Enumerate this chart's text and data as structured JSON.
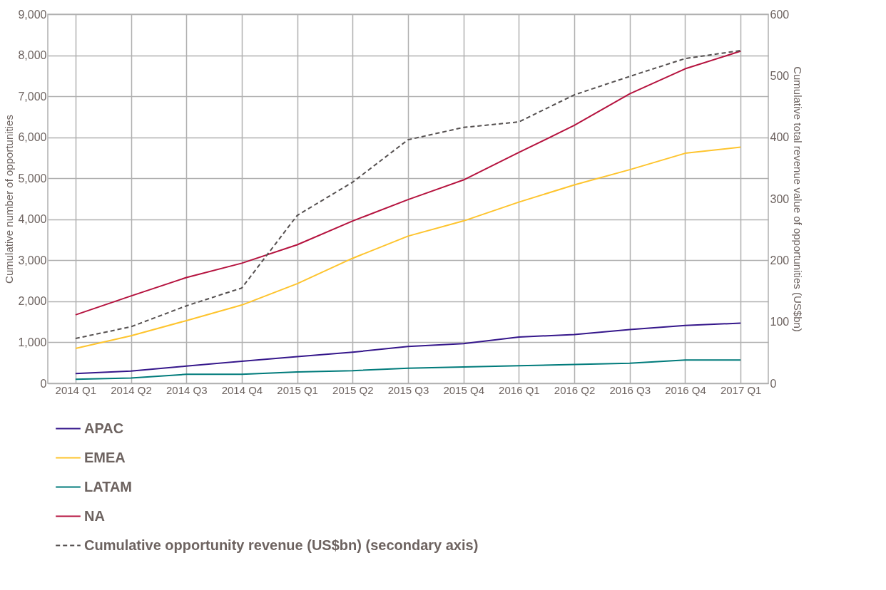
{
  "chart_data": {
    "type": "line",
    "categories": [
      "2014 Q1",
      "2014 Q2",
      "2014 Q3",
      "2014 Q4",
      "2015 Q1",
      "2015 Q2",
      "2015 Q3",
      "2015 Q4",
      "2016 Q1",
      "2016 Q2",
      "2016 Q3",
      "2016 Q4",
      "2017 Q1"
    ],
    "ylabel": "Cumulative number of opportunities",
    "y2label": "Cumulative total revenue value of opportunities (US$bn)",
    "ylim": [
      0,
      9000
    ],
    "yticks": [
      0,
      {
        "value": 1000,
        "label": "1,000"
      },
      {
        "value": 2000,
        "label": "2,000"
      },
      {
        "value": 3000,
        "label": "3,000"
      },
      {
        "value": 4000,
        "label": "4,000"
      },
      {
        "value": 5000,
        "label": "5,000"
      },
      {
        "value": 6000,
        "label": "6,000"
      },
      {
        "value": 7000,
        "label": "7,000"
      },
      {
        "value": 8000,
        "label": "8,000"
      },
      {
        "value": 9000,
        "label": "9,000"
      }
    ],
    "y2lim": [
      0,
      600
    ],
    "y2ticks": [
      0,
      100,
      200,
      300,
      400,
      500,
      600
    ],
    "grid": true,
    "legend": "bottom",
    "series": [
      {
        "name": "APAC",
        "color": "#35178b",
        "line_style": "solid",
        "values": [
          240,
          300,
          420,
          540,
          650,
          760,
          900,
          970,
          1130,
          1190,
          1310,
          1410,
          1470
        ]
      },
      {
        "name": "EMEA",
        "color": "#fec42d",
        "line_style": "solid",
        "values": [
          850,
          1160,
          1530,
          1910,
          2430,
          3050,
          3590,
          3960,
          4420,
          4840,
          5210,
          5610,
          5760
        ]
      },
      {
        "name": "LATAM",
        "color": "#007b7b",
        "line_style": "solid",
        "values": [
          100,
          130,
          220,
          220,
          280,
          310,
          370,
          400,
          430,
          460,
          490,
          570,
          570
        ]
      },
      {
        "name": "NA",
        "color": "#b5123e",
        "line_style": "solid",
        "values": [
          1670,
          2130,
          2580,
          2930,
          3380,
          3960,
          4480,
          4960,
          5630,
          6290,
          7060,
          7670,
          8100
        ]
      },
      {
        "name": "Cumulative opportunity revenue (US$bn) (secondary axis)",
        "color": "#555050",
        "line_style": "dashed",
        "axis": "y2",
        "values": [
          73,
          92,
          126,
          155,
          273,
          327,
          396,
          416,
          425,
          469,
          499,
          528,
          541
        ]
      }
    ]
  }
}
